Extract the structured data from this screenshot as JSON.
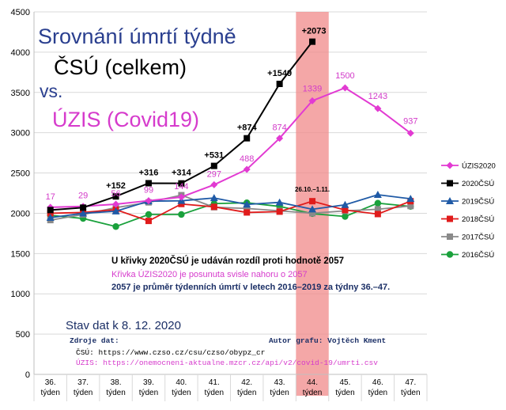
{
  "chart_data": {
    "type": "line",
    "title_lines": [
      "Srovnání úmrtí týdně",
      "ČSÚ (celkem)",
      "vs.",
      "ÚZIS (Covid19)"
    ],
    "categories": [
      "36.\ntýden",
      "37.\ntýden",
      "38.\ntýden",
      "39.\ntýden",
      "40.\ntýden",
      "41.\ntýden",
      "42.\ntýden",
      "43.\ntýden",
      "44.\ntýden",
      "45.\ntýden",
      "46.\ntýden",
      "47.\ntýden"
    ],
    "ylim": [
      0,
      4500
    ],
    "yticks": [
      0,
      500,
      1000,
      1500,
      2000,
      2500,
      3000,
      3500,
      4000,
      4500
    ],
    "grid": true,
    "legend_position": "right",
    "highlight": {
      "category_index": 8,
      "label": "26.10.–1.11.",
      "color": "#f08a8a"
    },
    "series": [
      {
        "name": "ÚZIS2020",
        "color": "#e23ad2",
        "marker": "diamond",
        "values": [
          2074,
          2086,
          2113,
          2156,
          2201,
          2354,
          2545,
          2931,
          3396,
          3557,
          3300,
          2994
        ],
        "labels": [
          "17",
          "29",
          "56",
          "99",
          "144",
          "297",
          "488",
          "874",
          "1339",
          "1500",
          "1243",
          "937"
        ],
        "label_color": "#d33bc9"
      },
      {
        "name": "2020ČSÚ",
        "color": "#000000",
        "marker": "square",
        "values": [
          2040,
          2070,
          2209,
          2373,
          2371,
          2588,
          2931,
          3606,
          4130,
          null,
          null,
          null
        ],
        "labels": [
          "",
          "",
          "+152",
          "+316",
          "+314",
          "+531",
          "+874",
          "+1549",
          "+2073",
          "",
          "",
          ""
        ],
        "label_color": "#000000"
      },
      {
        "name": "2019ČSÚ",
        "color": "#1f5aa6",
        "marker": "triangle",
        "values": [
          1945,
          2000,
          2025,
          2150,
          2155,
          2190,
          2110,
          2135,
          2050,
          2105,
          2230,
          2180
        ]
      },
      {
        "name": "2018ČSÚ",
        "color": "#e01b1b",
        "marker": "square",
        "values": [
          2000,
          2010,
          2045,
          1905,
          2115,
          2080,
          2010,
          2020,
          2150,
          2040,
          1990,
          2150
        ]
      },
      {
        "name": "2017ČSÚ",
        "color": "#8a8a8a",
        "marker": "square",
        "values": [
          1915,
          1985,
          2070,
          2135,
          2225,
          2075,
          2060,
          2030,
          2000,
          2030,
          2050,
          2090
        ]
      },
      {
        "name": "2016ČSÚ",
        "color": "#1aa13c",
        "marker": "circle",
        "values": [
          1975,
          1935,
          1835,
          1985,
          1985,
          2120,
          2130,
          2085,
          1995,
          1960,
          2125,
          2085
        ]
      }
    ]
  },
  "notes": {
    "line1": "U křivky 2020ČSÚ je udáván rozdíl proti hodnotě 2057",
    "line2": "Křivka ÚZIS2020 je posunuta svisle nahoru o 2057",
    "line3": "2057 je průměr týdenních úmrtí v letech 2016–2019 za týdny 36.–47."
  },
  "footer": {
    "stav": "Stav dat k 8. 12. 2020",
    "zdroje": "Zdroje dat:",
    "autor": "Autor grafu: Vojtěch Kment",
    "csu": "ČSÚ:  https://www.czso.cz/csu/czso/obypz_cr",
    "uzis": "ÚZIS: https://onemocneni-aktualne.mzcr.cz/api/v2/covid-19/umrti.csv"
  },
  "colors": {
    "title": "#2a3f8f",
    "uzis": "#d63bcc",
    "notes_dark": "#1b2f66",
    "highlight": "#f08a8a"
  }
}
